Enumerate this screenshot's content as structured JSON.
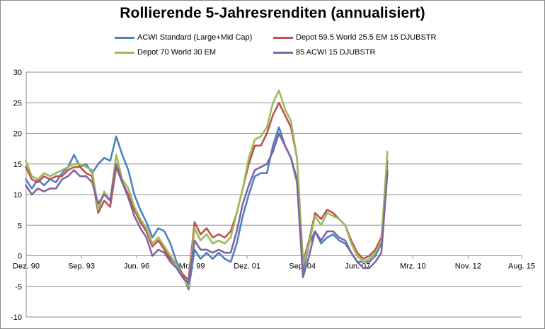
{
  "chart_data": {
    "type": "line",
    "title": "Rollierende 5-Jahresrenditen (annualisiert)",
    "xlabel": "",
    "ylabel": "",
    "ylim": [
      -10,
      30
    ],
    "yticks": [
      -10,
      -5,
      0,
      5,
      10,
      15,
      20,
      25,
      30
    ],
    "grid": true,
    "legend_position": "top",
    "x_start": 1990.917,
    "x_end": 2015.583,
    "x_tick_positions": [
      1990.917,
      1993.667,
      1996.417,
      1999.167,
      2001.917,
      2004.667,
      2007.417,
      2010.167,
      2012.917,
      2015.583
    ],
    "x_tick_labels": [
      "Dez. 90",
      "Sep. 93",
      "Jun. 96",
      "Mrz. 99",
      "Dez. 01",
      "Sep. 04",
      "Jun. 07",
      "Mrz. 10",
      "Nov. 12",
      "Aug. 15"
    ],
    "x": [
      1990.9,
      1991.2,
      1991.5,
      1991.8,
      1992.1,
      1992.4,
      1992.7,
      1993.0,
      1993.3,
      1993.6,
      1993.9,
      1994.2,
      1994.5,
      1994.8,
      1995.1,
      1995.4,
      1995.7,
      1996.0,
      1996.3,
      1996.6,
      1996.9,
      1997.2,
      1997.5,
      1997.8,
      1998.1,
      1998.4,
      1998.7,
      1999.0,
      1999.3,
      1999.6,
      1999.9,
      2000.2,
      2000.5,
      2000.8,
      2001.1,
      2001.4,
      2001.7,
      2002.0,
      2002.3,
      2002.6,
      2002.9,
      2003.2,
      2003.5,
      2003.8,
      2004.1,
      2004.4,
      2004.7,
      2005.0,
      2005.3,
      2005.6,
      2005.9,
      2006.2,
      2006.5,
      2006.8,
      2007.1,
      2007.4,
      2007.7,
      2008.0,
      2008.3,
      2008.6,
      2008.9
    ],
    "series": [
      {
        "name": "ACWI Standard (Large+Mid Cap)",
        "color": "#4f81bd",
        "values": [
          12.5,
          11,
          12.5,
          11.5,
          12.5,
          12,
          13.5,
          14.5,
          16.5,
          14.5,
          15,
          13.5,
          15,
          16,
          15.5,
          19.5,
          16.5,
          14,
          10,
          7.5,
          5.5,
          3,
          4.5,
          4,
          2,
          -1,
          -3,
          -5.5,
          1,
          -0.5,
          0.5,
          -0.5,
          0.5,
          -0.5,
          -1,
          2,
          6.5,
          10,
          13,
          13.5,
          13.5,
          18,
          21,
          18,
          16,
          12.5,
          -2.5,
          2,
          4,
          2,
          3,
          3.5,
          2.5,
          2,
          0.5,
          -1,
          -1,
          -1,
          0,
          2,
          15.5
        ]
      },
      {
        "name": "Depot 59.5 World 25.5 EM 15 DJUBSTR",
        "color": "#c0504d",
        "values": [
          14.5,
          12.5,
          12,
          13,
          12.5,
          13,
          13,
          14,
          14.5,
          14.5,
          13.5,
          13,
          7,
          9,
          8,
          14.5,
          12,
          10,
          7.5,
          5.5,
          4,
          1.5,
          2.5,
          1,
          -0.5,
          -1.5,
          -3,
          -4,
          5.5,
          3.5,
          4.5,
          3,
          3.5,
          3,
          4,
          7,
          11,
          15,
          18,
          18,
          20,
          23,
          25,
          23,
          21,
          16,
          -1,
          2.5,
          7,
          6,
          7.5,
          7,
          6,
          5,
          2.5,
          0.5,
          -0.5,
          0,
          1,
          3,
          14
        ]
      },
      {
        "name": "Depot 70 World 30 EM",
        "color": "#9bbb59",
        "values": [
          15.5,
          13,
          12.5,
          13.5,
          13,
          13.5,
          14,
          14.5,
          15,
          15,
          14.5,
          14,
          7.5,
          10.5,
          9,
          16.5,
          12.5,
          11,
          8,
          6,
          4.5,
          2,
          3,
          1.5,
          0,
          -1.5,
          -3.5,
          -5,
          4.5,
          2.5,
          3.5,
          2,
          2.5,
          2,
          3,
          7,
          11,
          16,
          19,
          19.5,
          21,
          25,
          27,
          24,
          22,
          16,
          -1.5,
          2,
          6.5,
          5,
          7,
          6.5,
          6,
          5,
          2,
          0,
          -1,
          -0.5,
          0.5,
          2.5,
          17
        ]
      },
      {
        "name": "85 ACWI 15 DJUBSTR",
        "color": "#8064a2",
        "values": [
          11.5,
          10,
          11,
          10.5,
          11,
          11,
          12.5,
          13,
          14,
          13,
          13,
          12,
          8.5,
          10,
          9,
          15,
          12,
          9.5,
          6.5,
          4.5,
          3,
          0,
          1,
          0.5,
          -1,
          -2,
          -3.5,
          -4.5,
          2.5,
          1,
          1,
          0.5,
          1,
          0.5,
          0.5,
          4,
          8.5,
          11.5,
          14,
          14.5,
          15,
          17,
          20,
          18,
          16,
          12,
          -3.5,
          0,
          4,
          2.5,
          4,
          4,
          3,
          2.5,
          0.5,
          -1,
          -2,
          -2,
          -1,
          0.5,
          13.5
        ]
      }
    ]
  }
}
